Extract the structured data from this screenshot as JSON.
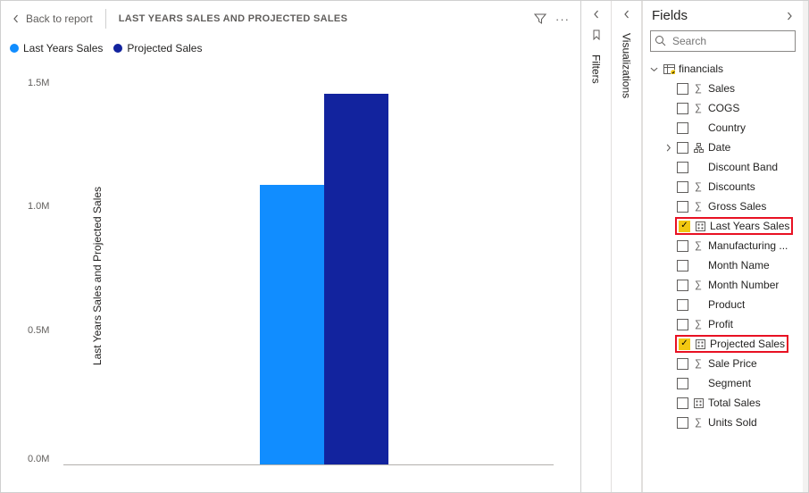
{
  "header": {
    "back_label": "Back to report",
    "title": "LAST YEARS SALES AND PROJECTED SALES"
  },
  "chart": {
    "type": "bar",
    "legend": [
      {
        "label": "Last Years Sales",
        "color": "#118dff"
      },
      {
        "label": "Projected Sales",
        "color": "#12239e"
      }
    ],
    "y_axis_label": "Last Years Sales and Projected Sales",
    "ylim": [
      0,
      1600000
    ],
    "ticks": [
      {
        "label": "1.5M",
        "value": 1500000
      },
      {
        "label": "1.0M",
        "value": 1000000
      },
      {
        "label": "0.5M",
        "value": 500000
      },
      {
        "label": "0.0M",
        "value": 0
      }
    ],
    "bars": [
      {
        "value": 1130000,
        "color": "#118dff"
      },
      {
        "value": 1500000,
        "color": "#12239e"
      }
    ],
    "axis_color": "#b3b0ad",
    "tick_fontsize": 11,
    "background_color": "#ffffff"
  },
  "panels": {
    "filters_label": "Filters",
    "visualizations_label": "Visualizations",
    "fields_label": "Fields",
    "search_placeholder": "Search"
  },
  "fields_tree": {
    "table_name": "financials",
    "fields": [
      {
        "name": "Sales",
        "icon": "sigma",
        "checked": false
      },
      {
        "name": "COGS",
        "icon": "sigma",
        "checked": false
      },
      {
        "name": "Country",
        "icon": "none",
        "checked": false
      },
      {
        "name": "Date",
        "icon": "date",
        "checked": false,
        "expandable": true
      },
      {
        "name": "Discount Band",
        "icon": "none",
        "checked": false
      },
      {
        "name": "Discounts",
        "icon": "sigma",
        "checked": false
      },
      {
        "name": "Gross Sales",
        "icon": "sigma",
        "checked": false
      },
      {
        "name": "Last Years Sales",
        "icon": "measure",
        "checked": true,
        "highlight": true
      },
      {
        "name": "Manufacturing ...",
        "icon": "sigma",
        "checked": false
      },
      {
        "name": "Month Name",
        "icon": "none",
        "checked": false
      },
      {
        "name": "Month Number",
        "icon": "sigma",
        "checked": false
      },
      {
        "name": "Product",
        "icon": "none",
        "checked": false
      },
      {
        "name": "Profit",
        "icon": "sigma",
        "checked": false
      },
      {
        "name": "Projected Sales",
        "icon": "measure",
        "checked": true,
        "highlight": true
      },
      {
        "name": "Sale Price",
        "icon": "sigma",
        "checked": false
      },
      {
        "name": "Segment",
        "icon": "none",
        "checked": false
      },
      {
        "name": "Total Sales",
        "icon": "measure",
        "checked": false
      },
      {
        "name": "Units Sold",
        "icon": "sigma",
        "checked": false
      }
    ]
  }
}
